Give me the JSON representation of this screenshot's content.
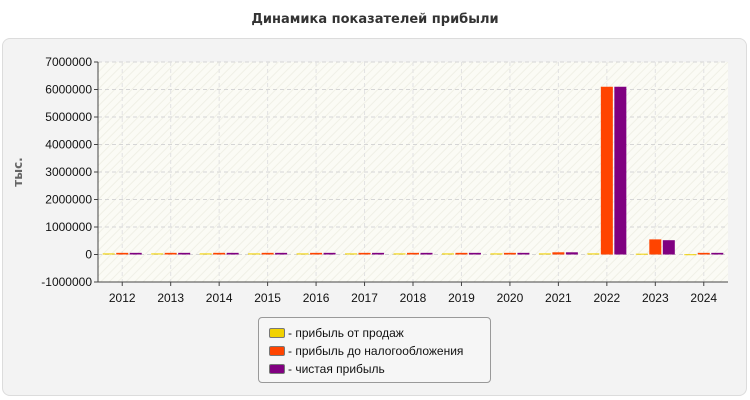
{
  "chart_data": {
    "type": "bar",
    "title": "Динамика показателей прибыли",
    "ylabel": "тыс.",
    "xlabel": "",
    "categories": [
      "2012",
      "2013",
      "2014",
      "2015",
      "2016",
      "2017",
      "2018",
      "2019",
      "2020",
      "2021",
      "2022",
      "2023",
      "2024"
    ],
    "ylim": [
      -1000000,
      7000000
    ],
    "yticks": [
      -1000000,
      0,
      1000000,
      2000000,
      3000000,
      4000000,
      5000000,
      6000000,
      7000000
    ],
    "ytick_labels": [
      "-1000000",
      "0",
      "1000000",
      "2000000",
      "3000000",
      "4000000",
      "5000000",
      "6000000",
      "7000000"
    ],
    "grid": true,
    "legend_position": "bottom-center",
    "series": [
      {
        "name": "- прибыль от продаж",
        "color": "#f2d200",
        "values": [
          40000,
          40000,
          40000,
          40000,
          40000,
          40000,
          40000,
          40000,
          40000,
          40000,
          40000,
          30000,
          10000
        ]
      },
      {
        "name": "- прибыль до налогообложения",
        "color": "#ff4400",
        "values": [
          60000,
          60000,
          60000,
          60000,
          60000,
          60000,
          60000,
          60000,
          60000,
          80000,
          6100000,
          550000,
          60000
        ]
      },
      {
        "name": "- чистая прибыль",
        "color": "#800080",
        "values": [
          60000,
          60000,
          60000,
          60000,
          60000,
          60000,
          60000,
          60000,
          60000,
          80000,
          6100000,
          520000,
          60000
        ]
      }
    ]
  }
}
